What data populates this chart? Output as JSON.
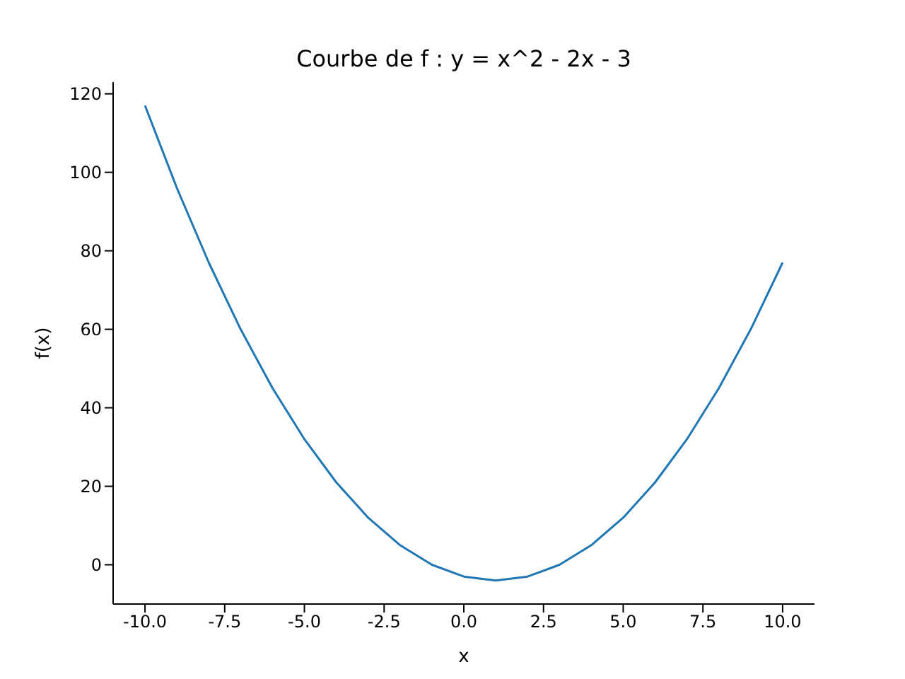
{
  "chart_data": {
    "type": "line",
    "title": "Courbe de f : y = x^2 - 2x - 3",
    "xlabel": "x",
    "ylabel": "f(x)",
    "x": [
      -10,
      -9,
      -8,
      -7,
      -6,
      -5,
      -4,
      -3,
      -2,
      -1,
      0,
      1,
      2,
      3,
      4,
      5,
      6,
      7,
      8,
      9,
      10
    ],
    "series": [
      {
        "color": "#1f77b4",
        "values": [
          117,
          96,
          77,
          60,
          45,
          32,
          21,
          12,
          5,
          0,
          -3,
          -4,
          -3,
          0,
          5,
          12,
          21,
          32,
          45,
          60,
          77
        ]
      }
    ],
    "xlim": [
      -11,
      11
    ],
    "xticks": [
      {
        "value": -10,
        "label": "-10.0"
      },
      {
        "value": -7.5,
        "label": "-7.5"
      },
      {
        "value": -5,
        "label": "-5.0"
      },
      {
        "value": -2.5,
        "label": "-2.5"
      },
      {
        "value": 0,
        "label": "0.0"
      },
      {
        "value": 2.5,
        "label": "2.5"
      },
      {
        "value": 5,
        "label": "5.0"
      },
      {
        "value": 7.5,
        "label": "7.5"
      },
      {
        "value": 10,
        "label": "10.0"
      }
    ],
    "ylim": [
      -10,
      123
    ],
    "yticks": [
      0,
      20,
      40,
      60,
      80,
      100,
      120
    ],
    "grid": false,
    "legend": false,
    "marker": "none",
    "line_style": "solid"
  }
}
